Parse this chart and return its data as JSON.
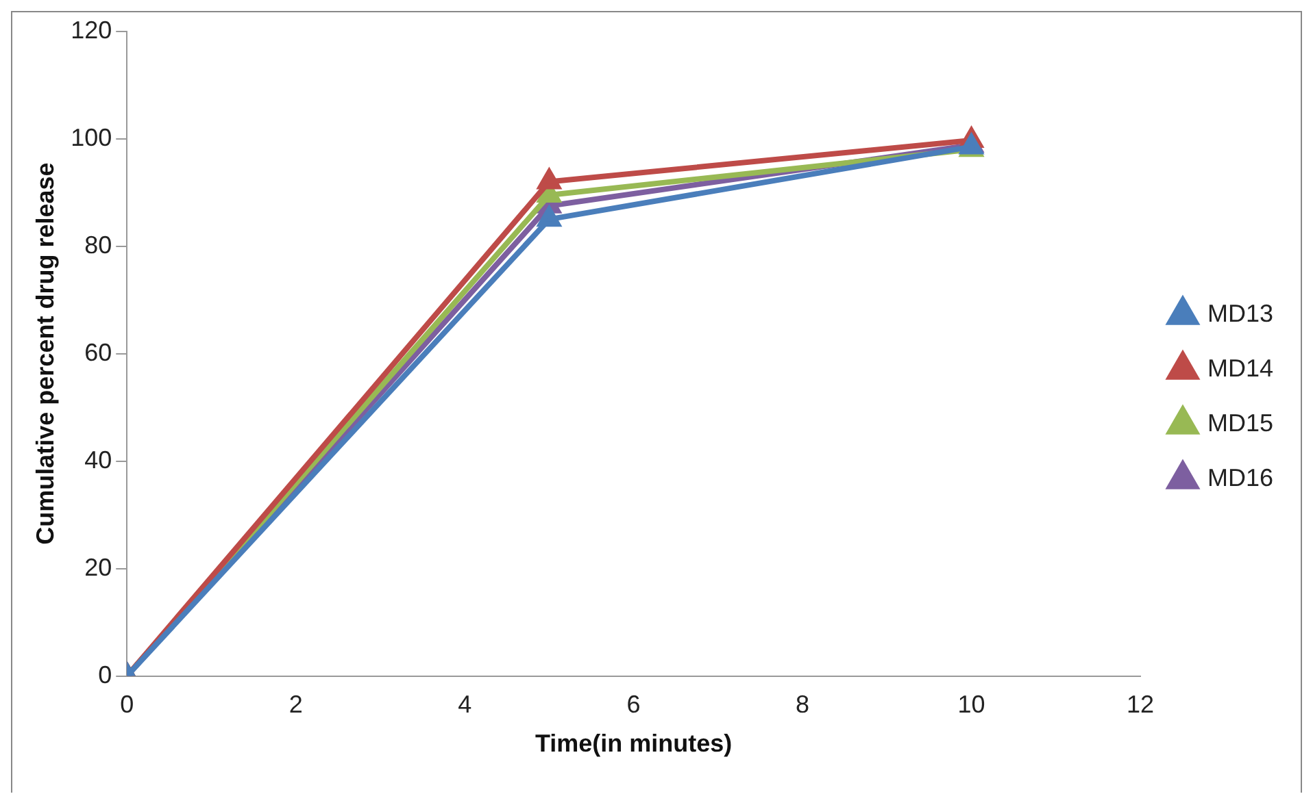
{
  "chart_data": {
    "type": "line",
    "xlabel": "Time(in minutes)",
    "ylabel": "Cumulative percent drug release",
    "x": [
      0,
      5,
      10
    ],
    "series": [
      {
        "name": "MD13",
        "color": "#4a7ebb",
        "values": [
          0,
          85,
          98.5
        ]
      },
      {
        "name": "MD14",
        "color": "#be4b48",
        "values": [
          0,
          92,
          99.7
        ]
      },
      {
        "name": "MD15",
        "color": "#98b954",
        "values": [
          0,
          89.5,
          98
        ]
      },
      {
        "name": "MD16",
        "color": "#7d5fa0",
        "values": [
          0,
          87.5,
          98.8
        ]
      }
    ],
    "xlim": [
      0,
      12
    ],
    "xticks": [
      0,
      2,
      4,
      6,
      8,
      10,
      12
    ],
    "ylim": [
      0,
      120
    ],
    "yticks": [
      0,
      20,
      40,
      60,
      80,
      100,
      120
    ],
    "grid": false,
    "legend": "right",
    "marker": "triangle",
    "line_style": "solid"
  }
}
